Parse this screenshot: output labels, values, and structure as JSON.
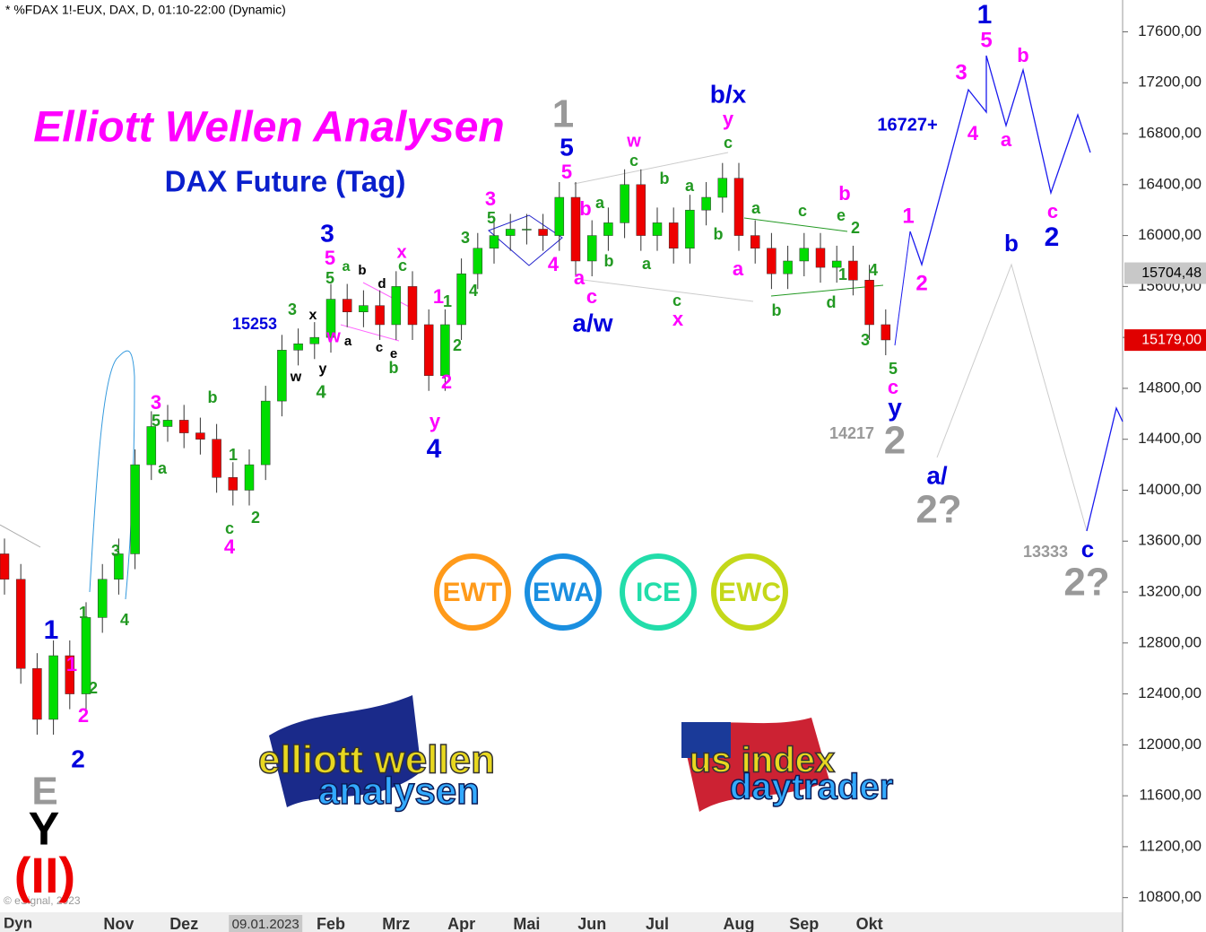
{
  "header": "* %FDAX 1!-EUX, DAX, D, 01:10-22:00 (Dynamic)",
  "chart_data": {
    "type": "candlestick",
    "title": "Elliott Wellen Analysen",
    "subtitle": "DAX Future (Tag)",
    "up_color": "#00dd00",
    "down_color": "#ee0000",
    "categories": [
      null,
      null,
      null,
      null,
      null,
      null,
      null,
      "Nov",
      null,
      null,
      null,
      "Dez",
      null,
      null,
      null,
      null,
      "09.01.2023",
      null,
      null,
      null,
      "Feb",
      null,
      null,
      null,
      "Mrz",
      null,
      null,
      null,
      "Apr",
      null,
      null,
      null,
      "Mai",
      null,
      null,
      null,
      "Jun",
      null,
      null,
      null,
      "Jul",
      null,
      null,
      null,
      null,
      "Aug",
      null,
      null,
      null,
      "Sep",
      null,
      null,
      null,
      "Okt",
      null
    ],
    "open": [
      13500,
      13300,
      12600,
      12200,
      12700,
      12400,
      13000,
      13300,
      13500,
      14200,
      14500,
      14550,
      14450,
      14400,
      14100,
      14000,
      14200,
      14700,
      15100,
      15150,
      15200,
      15500,
      15400,
      15450,
      15300,
      15600,
      15300,
      14900,
      15300,
      15700,
      15900,
      16000,
      16050,
      16050,
      16000,
      16300,
      15800,
      16000,
      16100,
      16400,
      16000,
      16100,
      15900,
      16200,
      16300,
      16450,
      16000,
      15900,
      15700,
      15800,
      15900,
      15750,
      15800,
      15650,
      15300
    ],
    "high": [
      13620,
      13420,
      12720,
      12820,
      12820,
      13120,
      13420,
      13620,
      14320,
      14620,
      14670,
      14670,
      14570,
      14520,
      14220,
      14320,
      14820,
      15220,
      15270,
      15320,
      15620,
      15620,
      15570,
      15570,
      15720,
      15720,
      15420,
      15420,
      15820,
      16020,
      16120,
      16170,
      16170,
      16170,
      16420,
      16420,
      16120,
      16220,
      16520,
      16520,
      16220,
      16220,
      16320,
      16420,
      16570,
      16570,
      16120,
      16020,
      15920,
      16020,
      16020,
      15920,
      15920,
      15770,
      15420
    ],
    "low": [
      13180,
      12480,
      12080,
      12080,
      12280,
      12280,
      12880,
      13180,
      13380,
      14080,
      14380,
      14330,
      14280,
      13980,
      13880,
      13880,
      14080,
      14580,
      14980,
      15030,
      15080,
      15280,
      15280,
      15180,
      15180,
      15180,
      14780,
      14780,
      15180,
      15580,
      15780,
      15880,
      15930,
      15880,
      15880,
      15680,
      15680,
      15880,
      15980,
      15880,
      15880,
      15780,
      15780,
      16080,
      16180,
      15880,
      15780,
      15580,
      15580,
      15680,
      15630,
      15630,
      15530,
      15180,
      15060
    ],
    "close": [
      13300,
      12600,
      12200,
      12700,
      12400,
      13000,
      13300,
      13500,
      14200,
      14500,
      14550,
      14450,
      14400,
      14100,
      14000,
      14200,
      14700,
      15100,
      15150,
      15200,
      15500,
      15400,
      15450,
      15300,
      15600,
      15300,
      14900,
      15300,
      15700,
      15900,
      16000,
      16050,
      16050,
      16000,
      16300,
      15800,
      16000,
      16100,
      16400,
      16000,
      16100,
      15900,
      16200,
      16300,
      16450,
      16000,
      15900,
      15700,
      15800,
      15900,
      15750,
      15800,
      15650,
      15300,
      15180
    ],
    "ylim": [
      10530,
      17850
    ],
    "yticks": [
      {
        "value": 10800,
        "label": "10800,00"
      },
      {
        "value": 11200,
        "label": "11200,00"
      },
      {
        "value": 11600,
        "label": "11600,00"
      },
      {
        "value": 12000,
        "label": "12000,00"
      },
      {
        "value": 12400,
        "label": "12400,00"
      },
      {
        "value": 12800,
        "label": "12800,00"
      },
      {
        "value": 13200,
        "label": "13200,00"
      },
      {
        "value": 13600,
        "label": "13600,00"
      },
      {
        "value": 14000,
        "label": "14000,00"
      },
      {
        "value": 14400,
        "label": "14400,00"
      },
      {
        "value": 14800,
        "label": "14800,00"
      },
      {
        "value": 15200,
        "label": "15200,00"
      },
      {
        "value": 15600,
        "label": "15600,00"
      },
      {
        "value": 16000,
        "label": "16000,00"
      },
      {
        "value": 16400,
        "label": "16400,00"
      },
      {
        "value": 16800,
        "label": "16800,00"
      },
      {
        "value": 17200,
        "label": "17200,00"
      },
      {
        "value": 17600,
        "label": "17600,00"
      }
    ],
    "price_markers": [
      {
        "value": 15704.48,
        "label": "15704,48",
        "color": "#c8c8c8",
        "text_color": "#000"
      },
      {
        "value": 15179,
        "label": "15179,00",
        "color": "#e00000",
        "text_color": "#fff"
      }
    ],
    "annotations": [
      {
        "text": "1",
        "color": "#999999"
      },
      {
        "text": "5",
        "color": "#0000dd"
      },
      {
        "text": "5",
        "color": "#ff00ff"
      },
      {
        "text": "w",
        "color": "#ff00ff"
      },
      {
        "text": "c",
        "color": "#229922"
      },
      {
        "text": "b/x",
        "color": "#0000dd"
      },
      {
        "text": "y",
        "color": "#ff00ff"
      },
      {
        "text": "c",
        "color": "#229922"
      },
      {
        "text": "1",
        "color": "#0000dd"
      },
      {
        "text": "5",
        "color": "#ff00ff"
      },
      {
        "text": "3",
        "color": "#ff00ff"
      },
      {
        "text": "b",
        "color": "#ff00ff"
      },
      {
        "text": "4",
        "color": "#ff00ff"
      },
      {
        "text": "a",
        "color": "#ff00ff"
      },
      {
        "text": "16727+",
        "color": "#0000dd"
      },
      {
        "text": "b",
        "color": "#ff00ff"
      },
      {
        "text": "c",
        "color": "#229922"
      },
      {
        "text": "e",
        "color": "#229922"
      },
      {
        "text": "2",
        "color": "#229922"
      },
      {
        "text": "1",
        "color": "#ff00ff"
      },
      {
        "text": "2",
        "color": "#ff00ff"
      },
      {
        "text": "b",
        "color": "#0000dd"
      },
      {
        "text": "c",
        "color": "#ff00ff"
      },
      {
        "text": "2",
        "color": "#0000dd"
      },
      {
        "text": "4",
        "color": "#229922"
      },
      {
        "text": "1",
        "color": "#229922"
      },
      {
        "text": "a",
        "color": "#229922"
      },
      {
        "text": "b",
        "color": "#229922"
      },
      {
        "text": "a",
        "color": "#ff00ff"
      },
      {
        "text": "b",
        "color": "#229922"
      },
      {
        "text": "d",
        "color": "#229922"
      },
      {
        "text": "3",
        "color": "#229922"
      },
      {
        "text": "5",
        "color": "#229922"
      },
      {
        "text": "c",
        "color": "#ff00ff"
      },
      {
        "text": "y",
        "color": "#0000dd"
      },
      {
        "text": "2",
        "color": "#999999"
      },
      {
        "text": "14217",
        "color": "#999999"
      },
      {
        "text": "a/",
        "color": "#0000dd"
      },
      {
        "text": "2?",
        "color": "#999999"
      },
      {
        "text": "13333",
        "color": "#999999"
      },
      {
        "text": "c",
        "color": "#0000dd"
      },
      {
        "text": "2?",
        "color": "#999999"
      },
      {
        "text": "a/w",
        "color": "#0000dd"
      },
      {
        "text": "a",
        "color": "#ff00ff"
      },
      {
        "text": "c",
        "color": "#ff00ff"
      },
      {
        "text": "x",
        "color": "#ff00ff"
      },
      {
        "text": "c",
        "color": "#229922"
      },
      {
        "text": "a",
        "color": "#229922"
      },
      {
        "text": "b",
        "color": "#229922"
      },
      {
        "text": "a",
        "color": "#229922"
      },
      {
        "text": "b",
        "color": "#ff00ff"
      },
      {
        "text": "b",
        "color": "#229922"
      },
      {
        "text": "a",
        "color": "#229922"
      },
      {
        "text": "4",
        "color": "#ff00ff"
      },
      {
        "text": "3",
        "color": "#ff00ff"
      },
      {
        "text": "5",
        "color": "#229922"
      },
      {
        "text": "3",
        "color": "#229922"
      },
      {
        "text": "4",
        "color": "#229922"
      },
      {
        "text": "1",
        "color": "#ff00ff"
      },
      {
        "text": "1",
        "color": "#229922"
      },
      {
        "text": "2",
        "color": "#229922"
      },
      {
        "text": "2",
        "color": "#ff00ff"
      },
      {
        "text": "y",
        "color": "#ff00ff"
      },
      {
        "text": "4",
        "color": "#0000dd"
      },
      {
        "text": "x",
        "color": "#ff00ff"
      },
      {
        "text": "c",
        "color": "#229922"
      },
      {
        "text": "3",
        "color": "#0000dd"
      },
      {
        "text": "5",
        "color": "#ff00ff"
      },
      {
        "text": "5",
        "color": "#229922"
      },
      {
        "text": "a",
        "color": "#229922"
      },
      {
        "text": "b",
        "color": "#000000"
      },
      {
        "text": "d",
        "color": "#000000"
      },
      {
        "text": "c",
        "color": "#000000"
      },
      {
        "text": "e",
        "color": "#000000"
      },
      {
        "text": "b",
        "color": "#229922"
      },
      {
        "text": "w",
        "color": "#ff00ff"
      },
      {
        "text": "a",
        "color": "#000000"
      },
      {
        "text": "x",
        "color": "#000000"
      },
      {
        "text": "y",
        "color": "#000000"
      },
      {
        "text": "w",
        "color": "#000000"
      },
      {
        "text": "4",
        "color": "#229922"
      },
      {
        "text": "3",
        "color": "#229922"
      },
      {
        "text": "15253",
        "color": "#0000dd"
      },
      {
        "text": "3",
        "color": "#ff00ff"
      },
      {
        "text": "5",
        "color": "#229922"
      },
      {
        "text": "b",
        "color": "#229922"
      },
      {
        "text": "a",
        "color": "#229922"
      },
      {
        "text": "1",
        "color": "#229922"
      },
      {
        "text": "2",
        "color": "#229922"
      },
      {
        "text": "c",
        "color": "#229922"
      },
      {
        "text": "4",
        "color": "#ff00ff"
      },
      {
        "text": "3",
        "color": "#229922"
      },
      {
        "text": "4",
        "color": "#229922"
      },
      {
        "text": "1",
        "color": "#229922"
      },
      {
        "text": "1",
        "color": "#0000dd"
      },
      {
        "text": "1",
        "color": "#ff00ff"
      },
      {
        "text": "2",
        "color": "#229922"
      },
      {
        "text": "2",
        "color": "#ff00ff"
      },
      {
        "text": "2",
        "color": "#0000dd"
      },
      {
        "text": "E",
        "color": "#999999"
      },
      {
        "text": "Y",
        "color": "#000000"
      },
      {
        "text": "(II)",
        "color": "#ee0000"
      }
    ]
  },
  "axis_corner": "Dyn",
  "copyright": "© eSignal, 2023",
  "logos": [
    {
      "text": "EWT",
      "color": "#ff9a1a"
    },
    {
      "text": "EWA",
      "color": "#1a8fe0"
    },
    {
      "text": "ICE",
      "color": "#22ddaa"
    },
    {
      "text": "EWC",
      "color": "#c4d81a"
    }
  ],
  "brand_left": [
    "elliott wellen",
    "analysen"
  ],
  "brand_right": [
    "us index",
    "daytrader"
  ]
}
